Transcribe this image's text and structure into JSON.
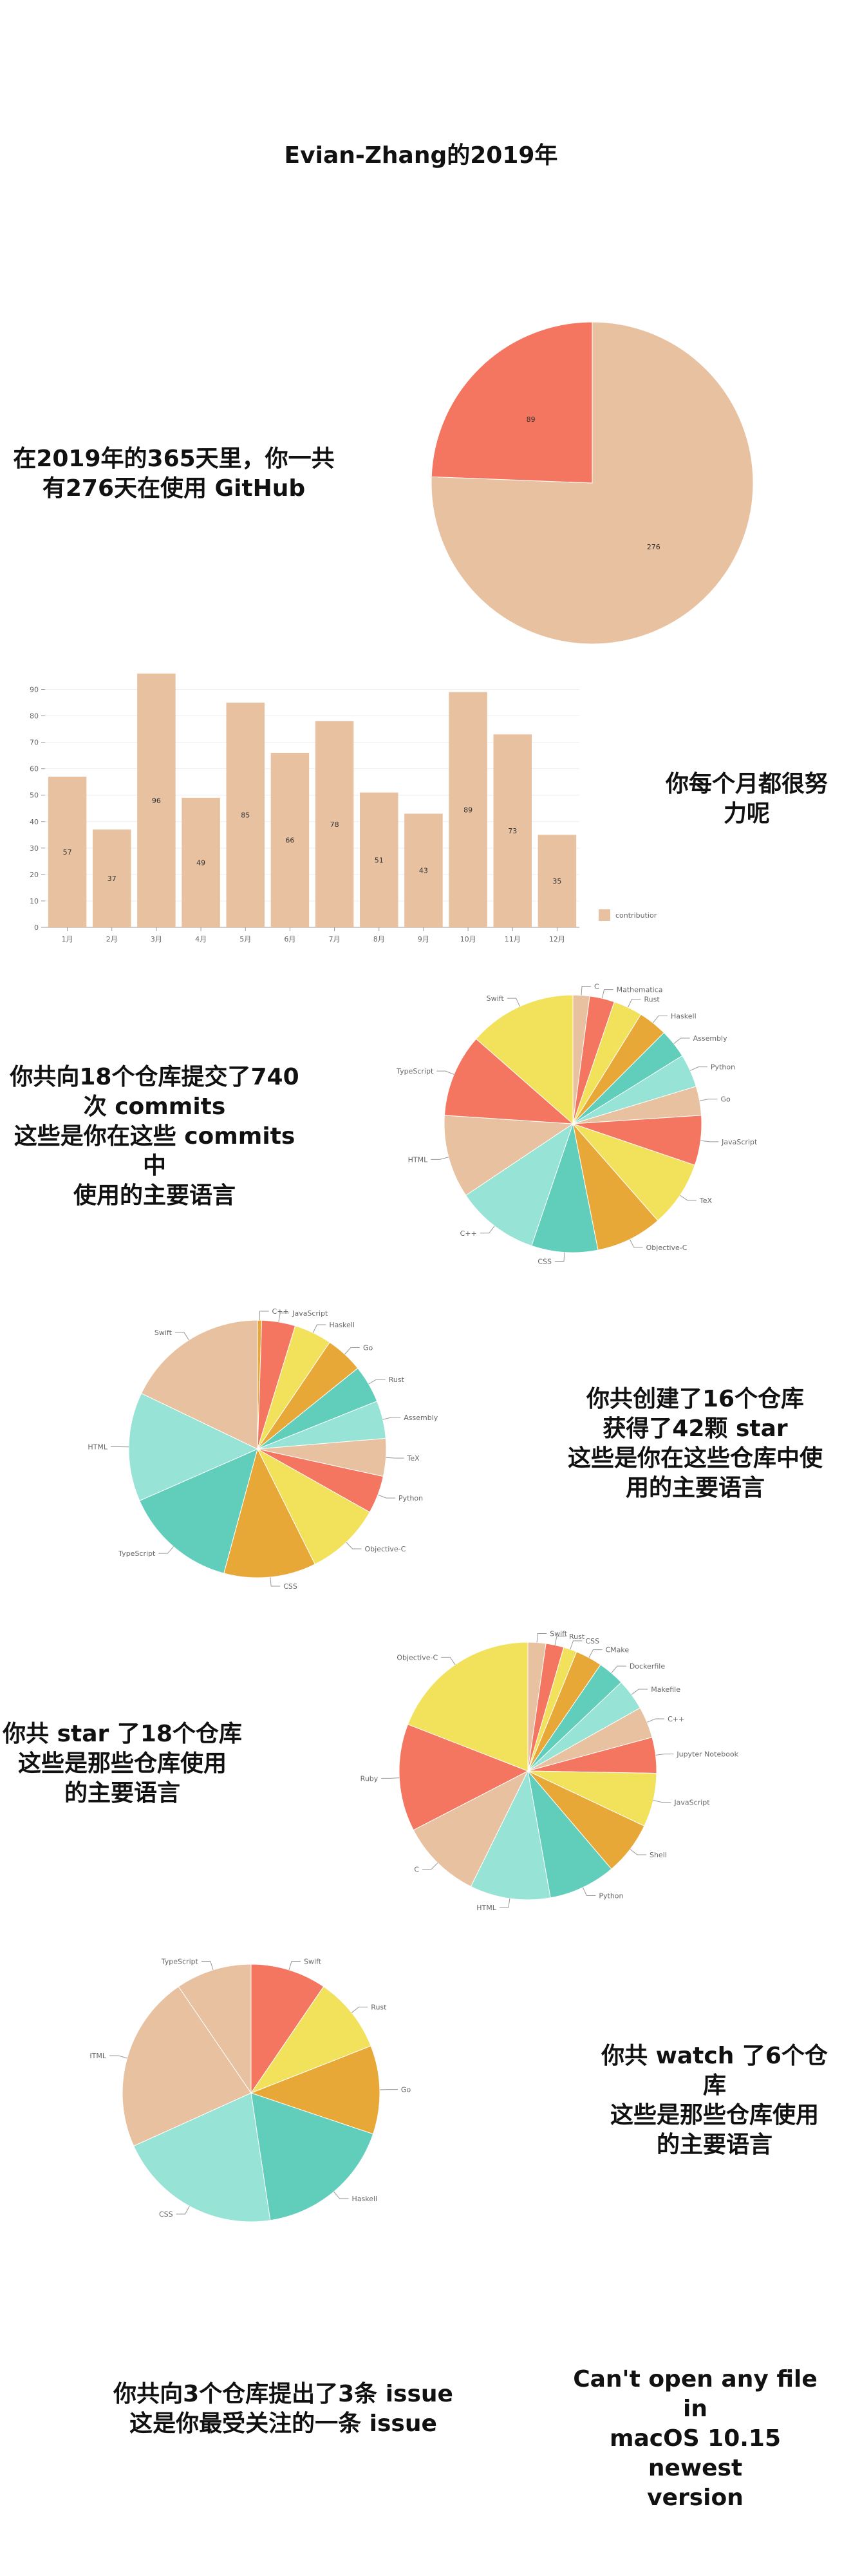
{
  "page_title": "Evian-Zhang的2019年",
  "sections": {
    "days": {
      "text": "在2019年的365天里，你一共\n有276天在使用 GitHub"
    },
    "monthly": {
      "text": "你每个月都很努\n力呢"
    },
    "commits": {
      "text": "你共向18个仓库提交了740\n次 commits\n这些是你在这些 commits 中\n使用的主要语言"
    },
    "stars": {
      "text": "你共创建了16个仓库\n获得了42颗 star\n这些是你在这些仓库中使\n用的主要语言"
    },
    "starred": {
      "text": "你共 star 了18个仓库\n这些是那些仓库使用\n的主要语言"
    },
    "watched": {
      "text": "你共 watch 了6个仓库\n这些是那些仓库使用\n的主要语言"
    },
    "issues": {
      "text": "你共向3个仓库提出了3条 issue\n这是你最受关注的一条 issue",
      "issue_title": "Can't open any file in\nmacOS 10.15 newest\nversion"
    }
  },
  "colors": {
    "salmon": "#F47560",
    "peach": "#E8C1A0",
    "yellow": "#F1E15B",
    "orange": "#E8A838",
    "teal": "#61CDBB",
    "mint": "#97E3D5",
    "text": "#111111"
  },
  "chart_data": [
    {
      "id": "days-pie",
      "type": "pie",
      "slices": [
        {
          "label": "276",
          "value": 276,
          "color": "#E8C1A0"
        },
        {
          "label": "89",
          "value": 89,
          "color": "#F47560"
        }
      ]
    },
    {
      "id": "monthly-bar",
      "type": "bar",
      "categories": [
        "1月",
        "2月",
        "3月",
        "4月",
        "5月",
        "6月",
        "7月",
        "8月",
        "9月",
        "10月",
        "11月",
        "12月"
      ],
      "series": [
        {
          "name": "contributions",
          "values": [
            57,
            37,
            96,
            49,
            85,
            66,
            78,
            51,
            43,
            89,
            73,
            35
          ],
          "color": "#E8C1A0"
        }
      ],
      "ylim": [
        0,
        95
      ],
      "yticks": [
        0,
        10,
        20,
        30,
        40,
        50,
        60,
        70,
        80,
        90
      ],
      "grid": true,
      "legend": "right"
    },
    {
      "id": "commit-langs",
      "type": "pie",
      "slices": [
        {
          "label": "C",
          "value": 2,
          "color": "#E8C1A0"
        },
        {
          "label": "Mathematica",
          "value": 3,
          "color": "#F47560"
        },
        {
          "label": "Rust",
          "value": 3.5,
          "color": "#F1E15B"
        },
        {
          "label": "Haskell",
          "value": 3.5,
          "color": "#E8A838"
        },
        {
          "label": "Assembly",
          "value": 3.5,
          "color": "#61CDBB"
        },
        {
          "label": "Python",
          "value": 4,
          "color": "#97E3D5"
        },
        {
          "label": "Go",
          "value": 3.5,
          "color": "#E8C1A0"
        },
        {
          "label": "JavaScript",
          "value": 6,
          "color": "#F47560"
        },
        {
          "label": "TeX",
          "value": 8,
          "color": "#F1E15B"
        },
        {
          "label": "Objective-C",
          "value": 8,
          "color": "#E8A838"
        },
        {
          "label": "CSS",
          "value": 8,
          "color": "#61CDBB"
        },
        {
          "label": "C++",
          "value": 10,
          "color": "#97E3D5"
        },
        {
          "label": "HTML",
          "value": 10,
          "color": "#E8C1A0"
        },
        {
          "label": "TypeScript",
          "value": 10,
          "color": "#F47560"
        },
        {
          "label": "Swift",
          "value": 13,
          "color": "#F1E15B"
        }
      ]
    },
    {
      "id": "star-langs",
      "type": "pie",
      "slices": [
        {
          "label": "C++",
          "value": 0.5,
          "color": "#E8A838"
        },
        {
          "label": "JavaScript",
          "value": 4,
          "color": "#F47560"
        },
        {
          "label": "Haskell",
          "value": 4.5,
          "color": "#F1E15B"
        },
        {
          "label": "Go",
          "value": 4.5,
          "color": "#E8A838"
        },
        {
          "label": "Rust",
          "value": 4.5,
          "color": "#61CDBB"
        },
        {
          "label": "Assembly",
          "value": 4.5,
          "color": "#97E3D5"
        },
        {
          "label": "TeX",
          "value": 4.5,
          "color": "#E8C1A0"
        },
        {
          "label": "Python",
          "value": 4.5,
          "color": "#F47560"
        },
        {
          "label": "Objective-C",
          "value": 9,
          "color": "#F1E15B"
        },
        {
          "label": "CSS",
          "value": 11,
          "color": "#E8A838"
        },
        {
          "label": "TypeScript",
          "value": 13.5,
          "color": "#61CDBB"
        },
        {
          "label": "HTML",
          "value": 13,
          "color": "#97E3D5"
        },
        {
          "label": "Swift",
          "value": 17,
          "color": "#E8C1A0"
        }
      ]
    },
    {
      "id": "starred-langs",
      "type": "pie",
      "slices": [
        {
          "label": "Swift",
          "value": 2,
          "color": "#E8C1A0"
        },
        {
          "label": "Rust",
          "value": 2,
          "color": "#F47560"
        },
        {
          "label": "CSS",
          "value": 1.5,
          "color": "#F1E15B"
        },
        {
          "label": "CMake",
          "value": 3,
          "color": "#E8A838"
        },
        {
          "label": "Dockerfile",
          "value": 3,
          "color": "#61CDBB"
        },
        {
          "label": "Makefile",
          "value": 3.5,
          "color": "#97E3D5"
        },
        {
          "label": "C++",
          "value": 3.5,
          "color": "#E8C1A0"
        },
        {
          "label": "Jupyter Notebook",
          "value": 4,
          "color": "#F47560"
        },
        {
          "label": "JavaScript",
          "value": 6,
          "color": "#F1E15B"
        },
        {
          "label": "Shell",
          "value": 6,
          "color": "#E8A838"
        },
        {
          "label": "Python",
          "value": 7.5,
          "color": "#61CDBB"
        },
        {
          "label": "HTML",
          "value": 9,
          "color": "#97E3D5"
        },
        {
          "label": "C",
          "value": 9,
          "color": "#E8C1A0"
        },
        {
          "label": "Ruby",
          "value": 12,
          "color": "#F47560"
        },
        {
          "label": "Objective-C",
          "value": 17,
          "color": "#F1E15B"
        }
      ]
    },
    {
      "id": "watched-langs",
      "type": "pie",
      "slices": [
        {
          "label": "Swift",
          "value": 6,
          "color": "#F47560"
        },
        {
          "label": "Rust",
          "value": 6,
          "color": "#F1E15B"
        },
        {
          "label": "Go",
          "value": 7,
          "color": "#E8A838"
        },
        {
          "label": "Haskell",
          "value": 11,
          "color": "#61CDBB"
        },
        {
          "label": "CSS",
          "value": 13,
          "color": "#97E3D5"
        },
        {
          "label": "HTML",
          "value": 14,
          "color": "#E8C1A0"
        },
        {
          "label": "TypeScript",
          "value": 6,
          "color": "#E8C1A0"
        }
      ]
    }
  ]
}
